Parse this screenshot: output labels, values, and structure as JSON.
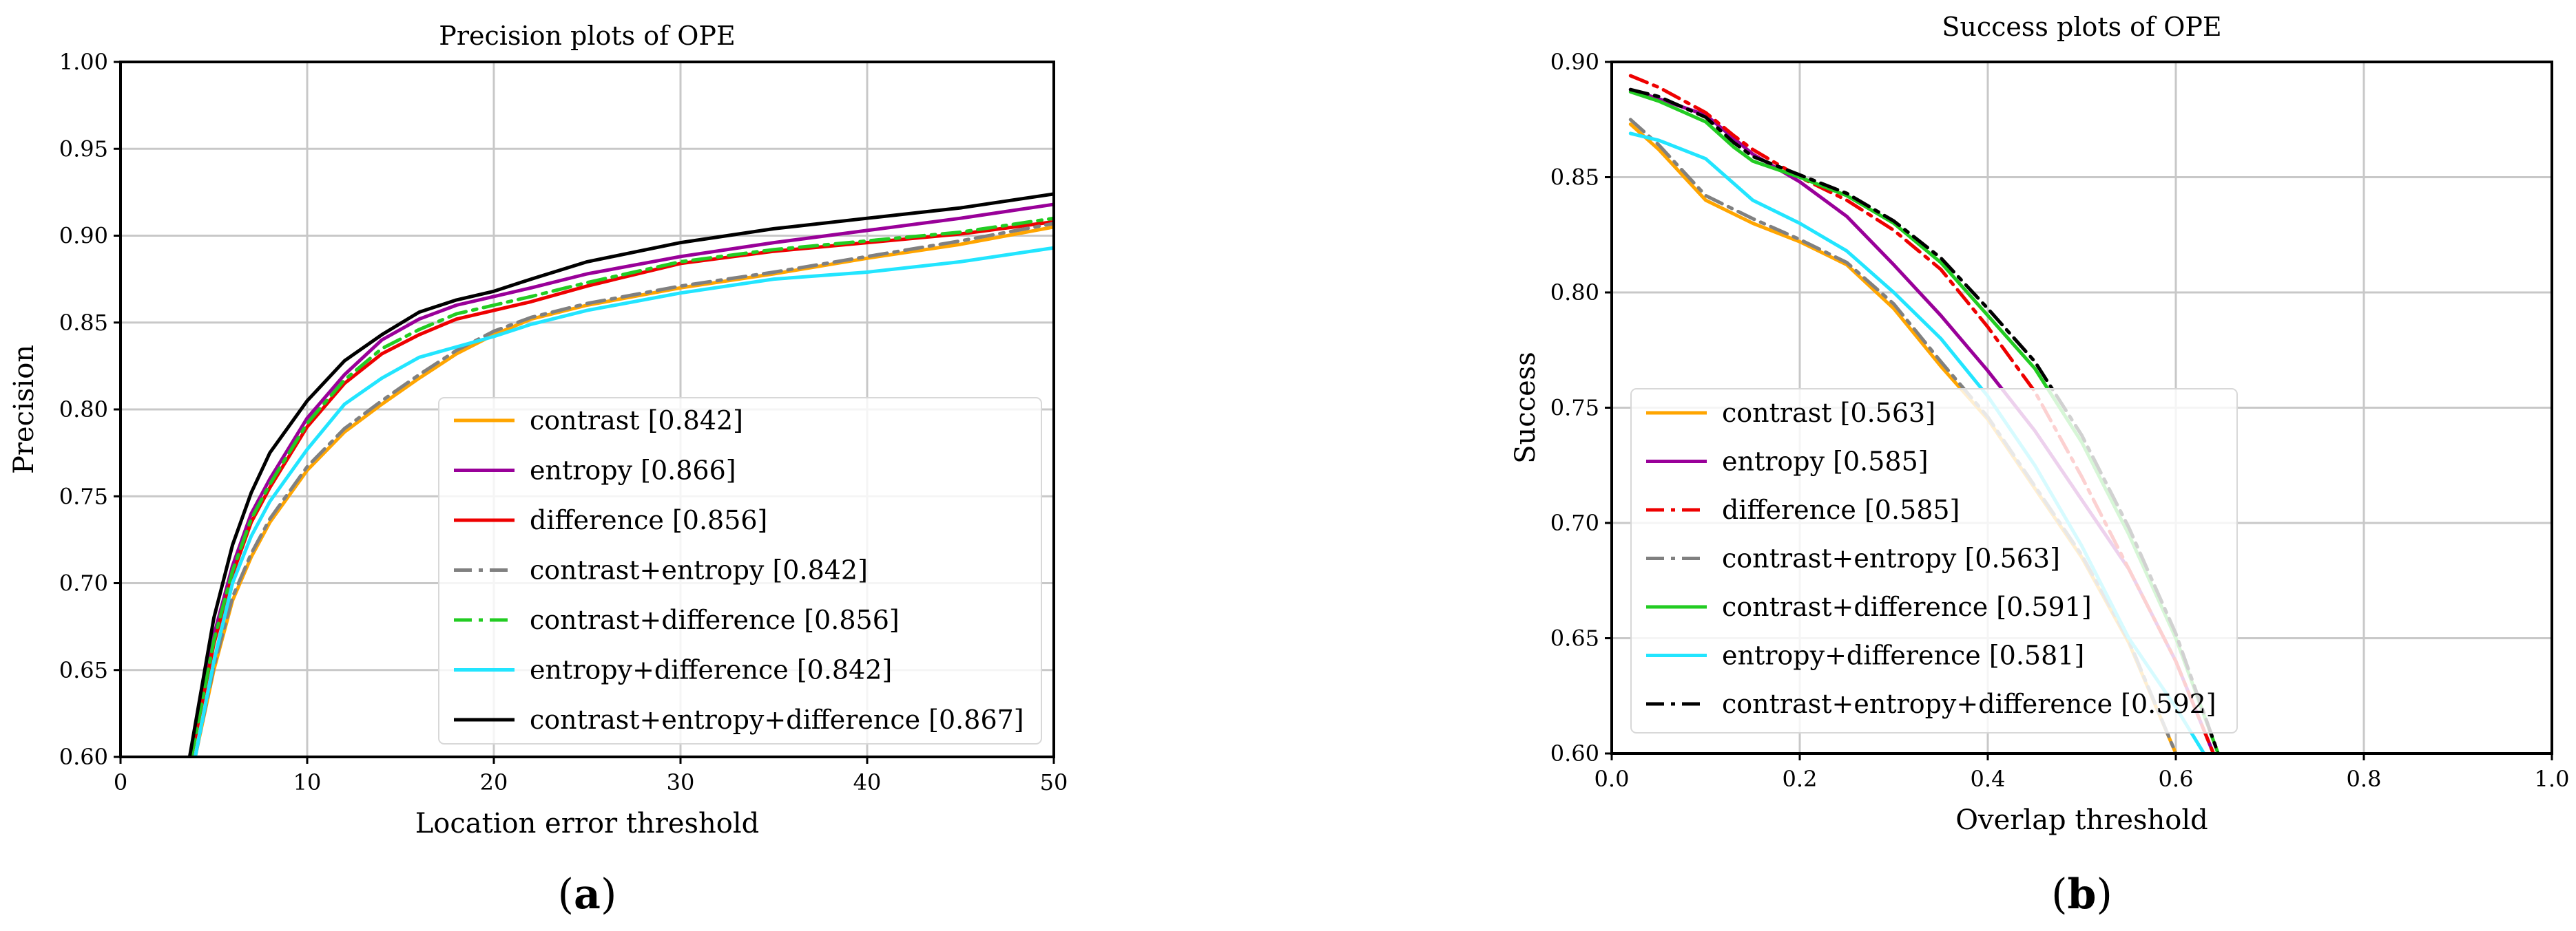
{
  "chart_data": [
    {
      "type": "line",
      "title": "Precision plots of OPE",
      "xlabel": "Location error threshold",
      "ylabel": "Precision",
      "xlim": [
        0,
        50
      ],
      "ylim": [
        0.6,
        1.0
      ],
      "xticks": [
        0,
        10,
        20,
        30,
        40,
        50
      ],
      "xtick_labels": [
        "0",
        "10",
        "20",
        "30",
        "40",
        "50"
      ],
      "yticks": [
        0.6,
        0.65,
        0.7,
        0.75,
        0.8,
        0.85,
        0.9,
        0.95,
        1.0
      ],
      "ytick_labels": [
        "0.60",
        "0.65",
        "0.70",
        "0.75",
        "0.80",
        "0.85",
        "0.90",
        "0.95",
        "1.00"
      ],
      "grid": true,
      "legend_position": "lower-right",
      "panel_label": "a",
      "series": [
        {
          "name": "contrast [0.842]",
          "color": "#FFA500",
          "dash": "solid",
          "x": [
            4,
            5,
            6,
            7,
            8,
            10,
            12,
            14,
            16,
            18,
            20,
            22,
            25,
            30,
            35,
            40,
            45,
            50
          ],
          "y": [
            0.6,
            0.65,
            0.69,
            0.715,
            0.735,
            0.765,
            0.787,
            0.803,
            0.818,
            0.832,
            0.843,
            0.852,
            0.86,
            0.87,
            0.878,
            0.887,
            0.895,
            0.905
          ]
        },
        {
          "name": "entropy [0.866]",
          "color": "#990099",
          "dash": "solid",
          "x": [
            3.8,
            5,
            6,
            7,
            8,
            10,
            12,
            14,
            16,
            18,
            20,
            22,
            25,
            30,
            35,
            40,
            45,
            50
          ],
          "y": [
            0.6,
            0.67,
            0.71,
            0.74,
            0.76,
            0.795,
            0.82,
            0.84,
            0.852,
            0.86,
            0.865,
            0.87,
            0.878,
            0.888,
            0.896,
            0.903,
            0.91,
            0.918
          ]
        },
        {
          "name": "difference [0.856]",
          "color": "#EE0000",
          "dash": "solid",
          "x": [
            3.8,
            5,
            6,
            7,
            8,
            10,
            12,
            14,
            16,
            18,
            20,
            22,
            25,
            30,
            35,
            40,
            45,
            50
          ],
          "y": [
            0.6,
            0.665,
            0.705,
            0.735,
            0.755,
            0.79,
            0.815,
            0.832,
            0.843,
            0.852,
            0.857,
            0.862,
            0.871,
            0.884,
            0.891,
            0.896,
            0.901,
            0.908
          ]
        },
        {
          "name": "contrast+entropy [0.842]",
          "color": "#808080",
          "dash": "dashdot",
          "x": [
            4,
            5,
            6,
            7,
            8,
            10,
            12,
            14,
            16,
            18,
            20,
            22,
            25,
            30,
            35,
            40,
            45,
            50
          ],
          "y": [
            0.6,
            0.652,
            0.692,
            0.717,
            0.737,
            0.767,
            0.789,
            0.805,
            0.82,
            0.834,
            0.845,
            0.853,
            0.861,
            0.871,
            0.879,
            0.888,
            0.897,
            0.907
          ]
        },
        {
          "name": "contrast+difference [0.856]",
          "color": "#22CC22",
          "dash": "dashdot",
          "x": [
            3.8,
            5,
            6,
            7,
            8,
            10,
            12,
            14,
            16,
            18,
            20,
            22,
            25,
            30,
            35,
            40,
            45,
            50
          ],
          "y": [
            0.6,
            0.667,
            0.707,
            0.737,
            0.757,
            0.792,
            0.817,
            0.835,
            0.846,
            0.855,
            0.86,
            0.865,
            0.873,
            0.885,
            0.892,
            0.897,
            0.902,
            0.91
          ]
        },
        {
          "name": "entropy+difference [0.842]",
          "color": "#22E5FF",
          "dash": "solid",
          "x": [
            4,
            5,
            6,
            7,
            8,
            10,
            12,
            14,
            16,
            18,
            20,
            22,
            25,
            30,
            35,
            40,
            45,
            50
          ],
          "y": [
            0.6,
            0.655,
            0.7,
            0.727,
            0.747,
            0.777,
            0.803,
            0.818,
            0.83,
            0.836,
            0.842,
            0.849,
            0.857,
            0.867,
            0.875,
            0.879,
            0.885,
            0.893
          ]
        },
        {
          "name": "contrast+entropy+difference [0.867]",
          "color": "#000000",
          "dash": "solid",
          "x": [
            3.7,
            5,
            6,
            7,
            8,
            10,
            12,
            14,
            16,
            18,
            20,
            22,
            25,
            30,
            35,
            40,
            45,
            50
          ],
          "y": [
            0.6,
            0.68,
            0.722,
            0.752,
            0.775,
            0.805,
            0.828,
            0.843,
            0.856,
            0.863,
            0.868,
            0.875,
            0.885,
            0.896,
            0.904,
            0.91,
            0.916,
            0.924
          ]
        }
      ]
    },
    {
      "type": "line",
      "title": "Success plots of OPE",
      "xlabel": "Overlap threshold",
      "ylabel": "Success",
      "xlim": [
        0,
        1.0
      ],
      "ylim": [
        0.6,
        0.9
      ],
      "xticks": [
        0,
        0.2,
        0.4,
        0.6,
        0.8,
        1.0
      ],
      "xtick_labels": [
        "0.0",
        "0.2",
        "0.4",
        "0.6",
        "0.8",
        "1.0"
      ],
      "yticks": [
        0.6,
        0.65,
        0.7,
        0.75,
        0.8,
        0.85,
        0.9
      ],
      "ytick_labels": [
        "0.60",
        "0.65",
        "0.70",
        "0.75",
        "0.80",
        "0.85",
        "0.90"
      ],
      "grid": true,
      "legend_position": "lower-left",
      "panel_label": "b",
      "series": [
        {
          "name": "contrast [0.563]",
          "color": "#FFA500",
          "dash": "solid",
          "x": [
            0.02,
            0.05,
            0.1,
            0.15,
            0.2,
            0.25,
            0.3,
            0.35,
            0.4,
            0.45,
            0.5,
            0.55,
            0.6
          ],
          "y": [
            0.873,
            0.862,
            0.84,
            0.83,
            0.822,
            0.812,
            0.793,
            0.768,
            0.745,
            0.715,
            0.685,
            0.648,
            0.6
          ]
        },
        {
          "name": "entropy [0.585]",
          "color": "#990099",
          "dash": "solid",
          "x": [
            0.02,
            0.05,
            0.1,
            0.15,
            0.2,
            0.25,
            0.3,
            0.35,
            0.4,
            0.45,
            0.5,
            0.55,
            0.6,
            0.64
          ],
          "y": [
            0.888,
            0.884,
            0.877,
            0.86,
            0.848,
            0.833,
            0.812,
            0.79,
            0.766,
            0.74,
            0.71,
            0.68,
            0.64,
            0.6
          ]
        },
        {
          "name": "difference [0.585]",
          "color": "#EE0000",
          "dash": "dashdot",
          "x": [
            0.02,
            0.05,
            0.1,
            0.13,
            0.15,
            0.2,
            0.25,
            0.3,
            0.35,
            0.4,
            0.45,
            0.5,
            0.55,
            0.6,
            0.64
          ],
          "y": [
            0.894,
            0.889,
            0.878,
            0.868,
            0.862,
            0.85,
            0.84,
            0.827,
            0.81,
            0.785,
            0.757,
            0.72,
            0.68,
            0.64,
            0.6
          ]
        },
        {
          "name": "contrast+entropy [0.563]",
          "color": "#808080",
          "dash": "dashdot",
          "x": [
            0.02,
            0.05,
            0.1,
            0.15,
            0.2,
            0.25,
            0.3,
            0.35,
            0.4,
            0.45,
            0.5,
            0.55,
            0.6
          ],
          "y": [
            0.875,
            0.864,
            0.842,
            0.832,
            0.823,
            0.813,
            0.795,
            0.77,
            0.746,
            0.716,
            0.686,
            0.649,
            0.6
          ]
        },
        {
          "name": "contrast+difference [0.591]",
          "color": "#22CC22",
          "dash": "solid",
          "x": [
            0.02,
            0.05,
            0.1,
            0.13,
            0.15,
            0.2,
            0.25,
            0.3,
            0.35,
            0.4,
            0.45,
            0.5,
            0.55,
            0.6,
            0.645
          ],
          "y": [
            0.887,
            0.883,
            0.874,
            0.863,
            0.857,
            0.85,
            0.842,
            0.83,
            0.813,
            0.79,
            0.767,
            0.735,
            0.695,
            0.65,
            0.6
          ]
        },
        {
          "name": "entropy+difference [0.581]",
          "color": "#22E5FF",
          "dash": "solid",
          "x": [
            0.02,
            0.05,
            0.1,
            0.15,
            0.2,
            0.25,
            0.3,
            0.35,
            0.4,
            0.45,
            0.5,
            0.55,
            0.6,
            0.63
          ],
          "y": [
            0.869,
            0.866,
            0.858,
            0.84,
            0.83,
            0.818,
            0.8,
            0.78,
            0.755,
            0.725,
            0.69,
            0.65,
            0.62,
            0.6
          ]
        },
        {
          "name": "contrast+entropy+difference [0.592]",
          "color": "#000000",
          "dash": "dashdot",
          "x": [
            0.02,
            0.05,
            0.1,
            0.13,
            0.15,
            0.2,
            0.25,
            0.3,
            0.35,
            0.4,
            0.45,
            0.5,
            0.55,
            0.6,
            0.645
          ],
          "y": [
            0.888,
            0.885,
            0.876,
            0.865,
            0.859,
            0.851,
            0.843,
            0.831,
            0.815,
            0.793,
            0.77,
            0.738,
            0.698,
            0.652,
            0.6
          ]
        }
      ]
    }
  ]
}
